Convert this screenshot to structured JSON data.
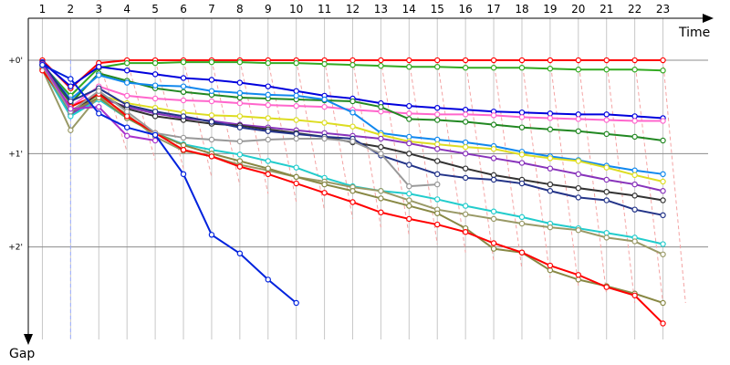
{
  "chart_data": {
    "type": "line",
    "title": "",
    "xlabel": "Time",
    "ylabel": "Gap",
    "x_ticks": [
      "1",
      "2",
      "3",
      "4",
      "5",
      "6",
      "7",
      "8",
      "9",
      "10",
      "11",
      "12",
      "13",
      "14",
      "15",
      "16",
      "17",
      "18",
      "19",
      "20",
      "21",
      "22",
      "23"
    ],
    "y_ticks": [
      {
        "label": "+0'",
        "value": 0
      },
      {
        "label": "+1'",
        "value": 1
      },
      {
        "label": "+2'",
        "value": 2
      }
    ],
    "xlim": [
      0.5,
      24.6
    ],
    "ylim": [
      -0.45,
      3.05
    ],
    "y_inverted": true,
    "grid": true,
    "legend": "none",
    "dashed_lap_lines": true,
    "colors": {
      "grid": "#c8c8c8",
      "lap_line": "#f4a3a3",
      "pit": "#9fb0ff"
    },
    "series": [
      {
        "color": "#ff0000",
        "x": [
          1,
          2,
          3,
          4,
          5,
          6,
          7,
          8,
          9,
          10,
          11,
          12,
          13,
          14,
          15,
          16,
          17,
          18,
          19,
          20,
          21,
          22,
          23
        ],
        "y": [
          0,
          0.3,
          0.03,
          0,
          0,
          0,
          0,
          0,
          0,
          0,
          0,
          0,
          0,
          0,
          0,
          0,
          0,
          0,
          0,
          0,
          0,
          0,
          0
        ]
      },
      {
        "color": "#33aa22",
        "x": [
          1,
          2,
          3,
          4,
          5,
          6,
          7,
          8,
          9,
          10,
          11,
          12,
          13,
          14,
          15,
          16,
          17,
          18,
          19,
          20,
          21,
          22,
          23
        ],
        "y": [
          0.05,
          0.38,
          0.08,
          0.03,
          0.03,
          0.02,
          0.02,
          0.02,
          0.03,
          0.03,
          0.04,
          0.05,
          0.06,
          0.07,
          0.07,
          0.08,
          0.08,
          0.08,
          0.09,
          0.1,
          0.1,
          0.1,
          0.11
        ]
      },
      {
        "color": "#0000dd",
        "x": [
          1,
          2,
          3,
          4,
          5,
          6,
          7,
          8,
          9,
          10,
          11,
          12,
          13,
          14,
          15,
          16,
          17,
          18,
          19,
          20,
          21,
          22,
          23
        ],
        "y": [
          0.02,
          0.28,
          0.07,
          0.11,
          0.15,
          0.19,
          0.21,
          0.24,
          0.28,
          0.33,
          0.38,
          0.41,
          0.46,
          0.49,
          0.51,
          0.53,
          0.55,
          0.56,
          0.57,
          0.58,
          0.58,
          0.6,
          0.62
        ]
      },
      {
        "color": "#ff66cc",
        "x": [
          1,
          2,
          3,
          4,
          5,
          6,
          7,
          8,
          9,
          10,
          11,
          12,
          13,
          14,
          15,
          16,
          17,
          18,
          19,
          20,
          21,
          22,
          23
        ],
        "y": [
          0.06,
          0.5,
          0.28,
          0.38,
          0.41,
          0.43,
          0.44,
          0.46,
          0.48,
          0.49,
          0.5,
          0.53,
          0.55,
          0.57,
          0.58,
          0.58,
          0.59,
          0.61,
          0.62,
          0.63,
          0.64,
          0.65,
          0.65
        ]
      },
      {
        "color": "#228822",
        "x": [
          1,
          2,
          3,
          4,
          5,
          6,
          7,
          8,
          9,
          10,
          11,
          12,
          13,
          14,
          15,
          16,
          17,
          18,
          19,
          20,
          21,
          22,
          23
        ],
        "y": [
          0.05,
          0.46,
          0.14,
          0.22,
          0.3,
          0.34,
          0.37,
          0.4,
          0.41,
          0.42,
          0.43,
          0.44,
          0.5,
          0.63,
          0.64,
          0.66,
          0.69,
          0.72,
          0.74,
          0.76,
          0.79,
          0.82,
          0.86
        ]
      },
      {
        "color": "#1188ee",
        "x": [
          1,
          2,
          3,
          4,
          5,
          6,
          7,
          8,
          9,
          10,
          11,
          12,
          13,
          14,
          15,
          16,
          17,
          18,
          19,
          20,
          21,
          22,
          23
        ],
        "y": [
          0.04,
          0.42,
          0.16,
          0.24,
          0.27,
          0.28,
          0.33,
          0.35,
          0.37,
          0.38,
          0.42,
          0.56,
          0.78,
          0.82,
          0.85,
          0.88,
          0.92,
          0.98,
          1.03,
          1.07,
          1.13,
          1.18,
          1.22
        ]
      },
      {
        "color": "#dddd22",
        "x": [
          1,
          2,
          3,
          4,
          5,
          6,
          7,
          8,
          9,
          10,
          11,
          12,
          13,
          14,
          15,
          16,
          17,
          18,
          19,
          20,
          21,
          22,
          23
        ],
        "y": [
          0.07,
          0.54,
          0.37,
          0.46,
          0.51,
          0.56,
          0.59,
          0.6,
          0.62,
          0.64,
          0.67,
          0.71,
          0.8,
          0.87,
          0.9,
          0.93,
          0.95,
          1.01,
          1.05,
          1.08,
          1.15,
          1.23,
          1.3
        ]
      },
      {
        "color": "#8833bb",
        "x": [
          1,
          2,
          3,
          4,
          5,
          6,
          7,
          8,
          9,
          10,
          11,
          12,
          13,
          14,
          15,
          16,
          17,
          18,
          19,
          20,
          21,
          22,
          23
        ],
        "y": [
          0.08,
          0.58,
          0.4,
          0.5,
          0.57,
          0.62,
          0.65,
          0.69,
          0.72,
          0.75,
          0.78,
          0.81,
          0.84,
          0.89,
          0.95,
          1.0,
          1.05,
          1.1,
          1.16,
          1.22,
          1.28,
          1.33,
          1.4
        ]
      },
      {
        "color": "#333333",
        "x": [
          1,
          2,
          3,
          4,
          5,
          6,
          7,
          8,
          9,
          10,
          11,
          12,
          13,
          14,
          15,
          16,
          17,
          18,
          19,
          20,
          21,
          22,
          23
        ],
        "y": [
          0.06,
          0.56,
          0.36,
          0.52,
          0.6,
          0.64,
          0.68,
          0.7,
          0.74,
          0.78,
          0.82,
          0.88,
          0.93,
          1.0,
          1.08,
          1.16,
          1.23,
          1.28,
          1.33,
          1.37,
          1.41,
          1.45,
          1.5
        ]
      },
      {
        "color": "#223388",
        "x": [
          1,
          2,
          3,
          4,
          5,
          6,
          7,
          8,
          9,
          10,
          11,
          12,
          13,
          14,
          15,
          16,
          17,
          18,
          19,
          20,
          21,
          22,
          23
        ],
        "y": [
          0.03,
          0.44,
          0.3,
          0.48,
          0.55,
          0.6,
          0.66,
          0.72,
          0.76,
          0.79,
          0.82,
          0.84,
          1.02,
          1.12,
          1.22,
          1.26,
          1.28,
          1.32,
          1.4,
          1.47,
          1.5,
          1.6,
          1.66
        ]
      },
      {
        "color": "#22cccc",
        "x": [
          1,
          2,
          3,
          4,
          5,
          6,
          7,
          8,
          9,
          10,
          11,
          12,
          13,
          14,
          15,
          16,
          17,
          18,
          19,
          20,
          21,
          22,
          23
        ],
        "y": [
          0.09,
          0.6,
          0.42,
          0.62,
          0.78,
          0.9,
          0.96,
          1.01,
          1.08,
          1.15,
          1.26,
          1.35,
          1.4,
          1.43,
          1.49,
          1.56,
          1.62,
          1.68,
          1.75,
          1.8,
          1.85,
          1.9,
          1.97
        ]
      },
      {
        "color": "#999966",
        "x": [
          1,
          2,
          3,
          4,
          5,
          6,
          7,
          8,
          9,
          10,
          11,
          12,
          13,
          14,
          15,
          16,
          17,
          18,
          19,
          20,
          21,
          22,
          23
        ],
        "y": [
          0.1,
          0.75,
          0.38,
          0.58,
          0.82,
          0.97,
          1.03,
          1.12,
          1.18,
          1.25,
          1.3,
          1.36,
          1.4,
          1.5,
          1.6,
          1.65,
          1.7,
          1.75,
          1.79,
          1.82,
          1.9,
          1.94,
          2.08
        ]
      },
      {
        "color": "#888844",
        "x": [
          1,
          2,
          3,
          4,
          5,
          6,
          7,
          8,
          9,
          10,
          11,
          12,
          13,
          14,
          15,
          16,
          17,
          18,
          19,
          20,
          21,
          22,
          23
        ],
        "y": [
          0.09,
          0.55,
          0.4,
          0.62,
          0.78,
          0.91,
          1.0,
          1.08,
          1.16,
          1.25,
          1.33,
          1.4,
          1.48,
          1.56,
          1.64,
          1.8,
          2.02,
          2.06,
          2.25,
          2.35,
          2.42,
          2.5,
          2.6
        ]
      },
      {
        "color": "#ff0000",
        "x": [
          1,
          2,
          3,
          4,
          5,
          6,
          7,
          8,
          9,
          10,
          11,
          12,
          13,
          14,
          15,
          16,
          17,
          18,
          19,
          20,
          21,
          22,
          23
        ],
        "y": [
          0.11,
          0.5,
          0.36,
          0.6,
          0.78,
          0.96,
          1.03,
          1.14,
          1.22,
          1.32,
          1.42,
          1.52,
          1.63,
          1.7,
          1.76,
          1.84,
          1.96,
          2.06,
          2.2,
          2.3,
          2.43,
          2.52,
          2.82
        ]
      },
      {
        "color": "#999999",
        "x": [
          1,
          2,
          3,
          4,
          5,
          6,
          7,
          8,
          9,
          10,
          11,
          12,
          13,
          14,
          15
        ],
        "y": [
          0.06,
          0.55,
          0.33,
          0.55,
          0.78,
          0.83,
          0.85,
          0.87,
          0.85,
          0.84,
          0.84,
          0.87,
          1.0,
          1.35,
          1.33
        ]
      },
      {
        "color": "#aa33cc",
        "x": [
          1,
          2,
          3,
          4,
          5
        ],
        "y": [
          0.04,
          0.52,
          0.5,
          0.81,
          0.86
        ]
      },
      {
        "color": "#0022dd",
        "x": [
          1,
          2,
          3,
          4,
          5,
          6,
          7,
          8,
          9,
          10
        ],
        "y": [
          0.05,
          0.2,
          0.57,
          0.72,
          0.8,
          1.22,
          1.87,
          2.07,
          2.35,
          2.6
        ]
      }
    ]
  }
}
